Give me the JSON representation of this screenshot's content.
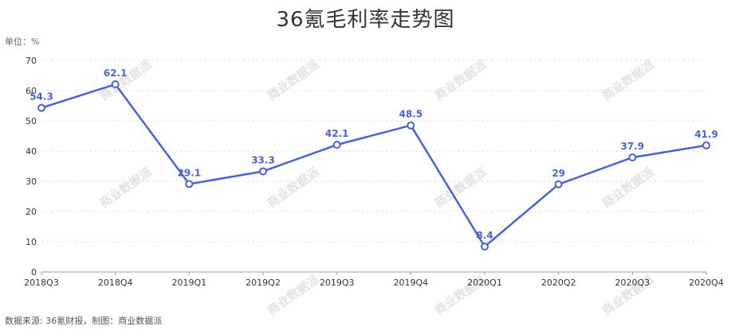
{
  "chart_data": {
    "type": "line",
    "title": "36氪毛利率走势图",
    "unit_label": "单位：%",
    "source": "数据来源: 36氪财报，制图：商业数据派",
    "watermark": "商业数据派",
    "categories": [
      "2018Q3",
      "2018Q4",
      "2019Q1",
      "2019Q2",
      "2019Q3",
      "2019Q4",
      "2020Q1",
      "2020Q2",
      "2020Q3",
      "2020Q4"
    ],
    "series": [
      {
        "values": [
          54.3,
          62.1,
          29.1,
          33.3,
          42.1,
          48.5,
          8.4,
          29,
          37.9,
          41.9
        ]
      }
    ],
    "data_labels": [
      "54.3",
      "62.1",
      "29.1",
      "33.3",
      "42.1",
      "48.5",
      "8.4",
      "29",
      "37.9",
      "41.9"
    ],
    "yticks": [
      "0",
      "10",
      "20",
      "30",
      "40",
      "50",
      "60",
      "70"
    ],
    "ylim": [
      0,
      70
    ],
    "grid": true,
    "legend": "none",
    "colors": {
      "line": "#4a62d8",
      "label": "#4a62d8",
      "grid": "#e0e0e0",
      "axis": "#999999"
    }
  }
}
